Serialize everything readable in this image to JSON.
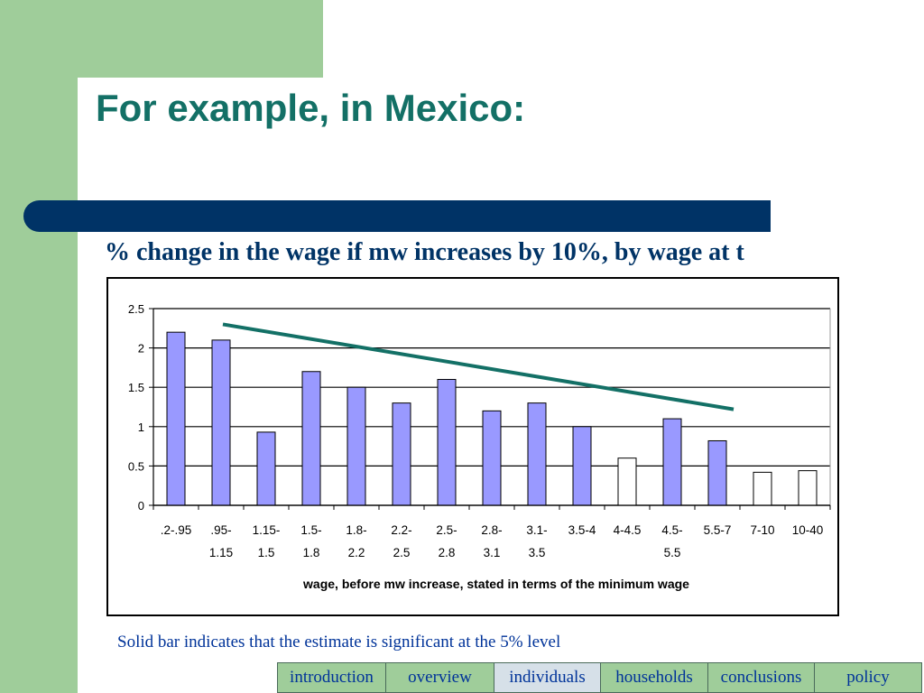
{
  "slide": {
    "title": "For example, in Mexico:",
    "subtitle": "% change in the wage if mw increases by 10%, by wage at t",
    "footnote": "Solid bar indicates that the estimate is significant at the 5% level"
  },
  "nav": {
    "items": [
      {
        "label": "introduction",
        "active": false
      },
      {
        "label": "overview",
        "active": false
      },
      {
        "label": "individuals",
        "active": true
      },
      {
        "label": "households",
        "active": false
      },
      {
        "label": "conclusions",
        "active": false
      },
      {
        "label": "policy",
        "active": false
      }
    ]
  },
  "colors": {
    "accent_green": "#9fcd9a",
    "title_teal": "#137066",
    "navy": "#003366",
    "bar_fill_significant": "#9999ff",
    "bar_fill_not_significant": "#ffffff",
    "trend_line": "#137066"
  },
  "chart_data": {
    "type": "bar",
    "categories": [
      ".2-.95",
      ".95-\n1.15",
      "1.15-\n1.5",
      "1.5-\n1.8",
      "1.8-\n2.2",
      "2.2-\n2.5",
      "2.5-\n2.8",
      "2.8-\n3.1",
      "3.1-\n3.5",
      "3.5-4",
      "4-4.5",
      "4.5-\n5.5",
      "5.5-7",
      "7-10",
      "10-40"
    ],
    "values": [
      2.2,
      2.1,
      0.93,
      1.7,
      1.5,
      1.3,
      1.6,
      1.2,
      1.3,
      1.0,
      0.6,
      1.1,
      0.82,
      0.42,
      0.44
    ],
    "significant": [
      true,
      true,
      true,
      true,
      true,
      true,
      true,
      true,
      true,
      true,
      false,
      true,
      true,
      false,
      false
    ],
    "trend_line": {
      "from_category": 1,
      "from_value": 2.3,
      "to_category": 12,
      "to_value": 1.22
    },
    "xlabel": "wage, before mw increase, stated in terms of the minimum wage",
    "ylabel": "",
    "ylim": [
      0,
      2.5
    ],
    "yticks": [
      "0",
      "0.5",
      "1",
      "1.5",
      "2",
      "2.5"
    ],
    "grid": true,
    "legend": "none"
  }
}
